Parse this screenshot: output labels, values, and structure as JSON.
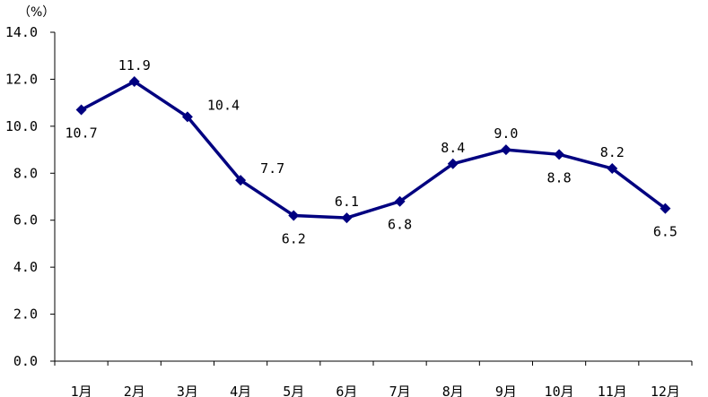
{
  "chart_data": {
    "type": "line",
    "unit": "（%）",
    "categories": [
      "1月",
      "2月",
      "3月",
      "4月",
      "5月",
      "6月",
      "7月",
      "8月",
      "9月",
      "10月",
      "11月",
      "12月"
    ],
    "series": [
      {
        "values": [
          10.7,
          11.9,
          10.4,
          7.7,
          6.2,
          6.1,
          6.8,
          8.4,
          9.0,
          8.8,
          8.2,
          6.5
        ],
        "color": "#000080",
        "marker": "diamond"
      }
    ],
    "data_labels": [
      "10.7",
      "11.9",
      "10.4",
      "7.7",
      "6.2",
      "6.1",
      "6.8",
      "8.4",
      "9.0",
      "8.8",
      "8.2",
      "6.5"
    ],
    "label_positions": [
      "below",
      "above",
      "right",
      "right",
      "below",
      "above",
      "below",
      "above",
      "above",
      "below",
      "above",
      "below"
    ],
    "yticks": [
      "0.0",
      "2.0",
      "4.0",
      "6.0",
      "8.0",
      "10.0",
      "12.0",
      "14.0"
    ],
    "ylim": [
      0,
      14
    ],
    "grid": false,
    "legend": "none"
  }
}
